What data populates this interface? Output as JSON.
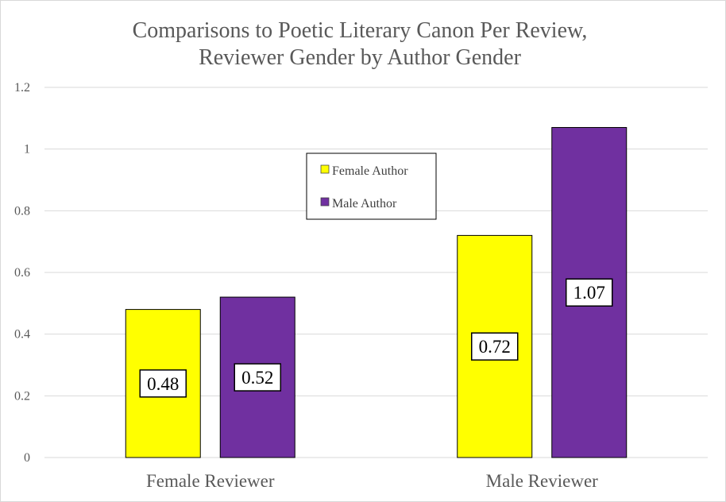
{
  "chart_data": {
    "type": "bar",
    "title": [
      "Comparisons to Poetic Literary Canon Per Review,",
      "Reviewer Gender by Author Gender"
    ],
    "categories": [
      "Female Reviewer",
      "Male Reviewer"
    ],
    "series": [
      {
        "name": "Female Author",
        "values": [
          0.48,
          0.72
        ],
        "color": "#ffff00"
      },
      {
        "name": "Male Author",
        "values": [
          0.52,
          1.07
        ],
        "color": "#7030a0"
      }
    ],
    "value_labels": [
      [
        "0.48",
        "0.72"
      ],
      [
        "0.52",
        "1.07"
      ]
    ],
    "ylim": [
      0,
      1.2
    ],
    "yticks": [
      0,
      0.2,
      0.4,
      0.6,
      0.8,
      1,
      1.2
    ],
    "ytick_labels": [
      "0",
      "0.2",
      "0.4",
      "0.6",
      "0.8",
      "1",
      "1.2"
    ],
    "xlabel": "",
    "ylabel": "",
    "grid": true,
    "legend_position": "top-center",
    "colors": {
      "gridline": "#d9d9d9",
      "bar_outline": "#000000",
      "axis_text": "#595959"
    }
  }
}
